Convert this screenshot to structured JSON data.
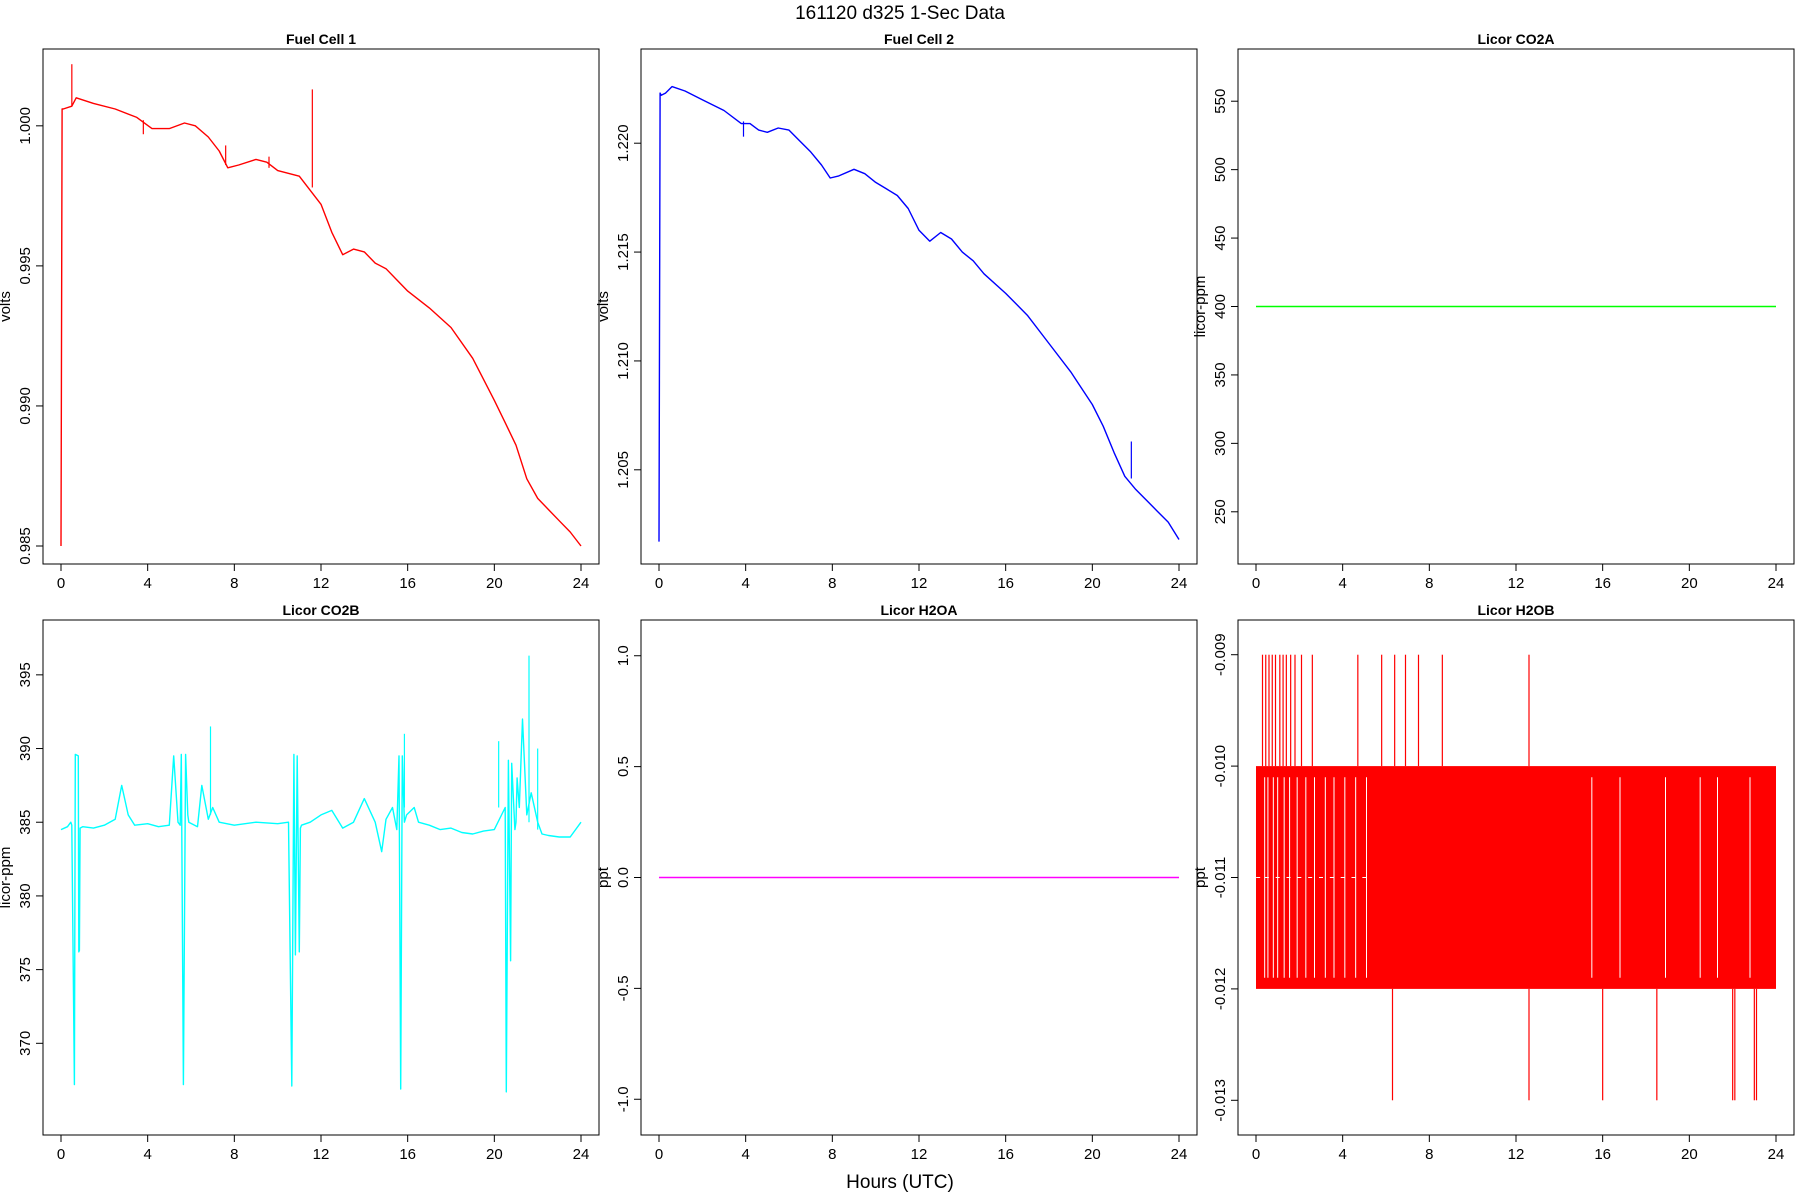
{
  "figure": {
    "title": "161120   d325   1-Sec Data",
    "xlabel": "Hours (UTC)"
  },
  "chart_data": [
    {
      "type": "line",
      "title": "Fuel Cell 1",
      "ylabel": "volts",
      "xlim": [
        0,
        24
      ],
      "ylim": [
        0.985,
        1.0021
      ],
      "x_ticks": [
        0,
        4,
        8,
        12,
        16,
        20,
        24
      ],
      "y_ticks": [
        0.985,
        0.99,
        0.995,
        1.0
      ],
      "y_tick_labels": [
        "0.985",
        "0.990",
        "0.995",
        "1.000"
      ],
      "color": "#ff0000",
      "series": [
        {
          "x": [
            0,
            0.05,
            0.1,
            0.5,
            0.7,
            1.5,
            2.5,
            3.5,
            4.2,
            5.0,
            5.7,
            6.2,
            6.8,
            7.3,
            7.7,
            8.2,
            9.0,
            9.5,
            10.0,
            11.0,
            11.5,
            12.0,
            12.5,
            13.0,
            13.5,
            14.0,
            14.5,
            15.0,
            15.5,
            16.0,
            17.0,
            18.0,
            19.0,
            20.0,
            20.5,
            21.0,
            21.5,
            22.0,
            22.5,
            23.0,
            23.5,
            24.0
          ],
          "y": [
            0.985,
            1.0006,
            1.0006,
            1.0007,
            1.001,
            1.0008,
            1.0006,
            1.0003,
            0.9999,
            0.9999,
            1.0001,
            1.0,
            0.9996,
            0.9991,
            0.9985,
            0.9986,
            0.9988,
            0.9987,
            0.9984,
            0.9982,
            0.9977,
            0.9972,
            0.9962,
            0.9954,
            0.9956,
            0.9955,
            0.9951,
            0.9949,
            0.9945,
            0.9941,
            0.9935,
            0.9928,
            0.9917,
            0.9902,
            0.9894,
            0.9886,
            0.9874,
            0.9867,
            0.9863,
            0.9859,
            0.9855,
            0.985
          ]
        }
      ],
      "spikes": [
        {
          "x": 0.5,
          "y0": 1.0007,
          "y1": 1.0022
        },
        {
          "x": 3.8,
          "y0": 0.9997,
          "y1": 1.0002
        },
        {
          "x": 7.6,
          "y0": 0.9986,
          "y1": 0.9993
        },
        {
          "x": 9.6,
          "y0": 0.9985,
          "y1": 0.9989
        },
        {
          "x": 11.6,
          "y0": 0.9978,
          "y1": 1.0013
        }
      ]
    },
    {
      "type": "line",
      "title": "Fuel Cell 2",
      "ylabel": "volts",
      "xlim": [
        0,
        24
      ],
      "ylim": [
        1.2015,
        1.2235
      ],
      "x_ticks": [
        0,
        4,
        8,
        12,
        16,
        20,
        24
      ],
      "y_ticks": [
        1.205,
        1.21,
        1.215,
        1.22
      ],
      "y_tick_labels": [
        "1.205",
        "1.210",
        "1.215",
        "1.220"
      ],
      "color": "#0000ff",
      "series": [
        {
          "x": [
            0,
            0.05,
            0.1,
            0.3,
            0.6,
            1.2,
            2.0,
            3.0,
            3.8,
            4.2,
            4.6,
            5.0,
            5.5,
            6.0,
            6.5,
            7.0,
            7.5,
            7.9,
            8.3,
            9.0,
            9.5,
            10.0,
            10.5,
            11.0,
            11.5,
            12.0,
            12.5,
            13.0,
            13.5,
            14.0,
            14.5,
            15.0,
            16.0,
            17.0,
            18.0,
            19.0,
            20.0,
            20.5,
            21.0,
            21.5,
            22.0,
            22.5,
            23.0,
            23.5,
            24.0
          ],
          "y": [
            1.2017,
            1.2223,
            1.2222,
            1.2223,
            1.2226,
            1.2224,
            1.222,
            1.2215,
            1.2209,
            1.2209,
            1.2206,
            1.2205,
            1.2207,
            1.2206,
            1.2201,
            1.2196,
            1.219,
            1.2184,
            1.2185,
            1.2188,
            1.2186,
            1.2182,
            1.2179,
            1.2176,
            1.217,
            1.216,
            1.2155,
            1.2159,
            1.2156,
            1.215,
            1.2146,
            1.214,
            1.2131,
            1.2121,
            1.2108,
            1.2095,
            1.208,
            1.207,
            1.2058,
            1.2047,
            1.2041,
            1.2036,
            1.2031,
            1.2026,
            1.2018
          ]
        }
      ],
      "spikes": [
        {
          "x": 3.9,
          "y0": 1.2203,
          "y1": 1.221
        },
        {
          "x": 21.8,
          "y0": 1.2046,
          "y1": 1.2063
        }
      ]
    },
    {
      "type": "line",
      "title": "Licor CO2A",
      "ylabel": "licor-ppm",
      "xlim": [
        0,
        24
      ],
      "ylim": [
        225,
        575
      ],
      "x_ticks": [
        0,
        4,
        8,
        12,
        16,
        20,
        24
      ],
      "y_ticks": [
        250,
        300,
        350,
        400,
        450,
        500,
        550
      ],
      "y_tick_labels": [
        "250",
        "300",
        "350",
        "400",
        "450",
        "500",
        "550"
      ],
      "color": "#00ff00",
      "series": [
        {
          "x": [
            0,
            24
          ],
          "y": [
            400,
            400
          ]
        }
      ]
    },
    {
      "type": "line",
      "title": "Licor CO2B",
      "ylabel": "licor-ppm",
      "xlim": [
        0,
        24
      ],
      "ylim": [
        365,
        397.5
      ],
      "x_ticks": [
        0,
        4,
        8,
        12,
        16,
        20,
        24
      ],
      "y_ticks": [
        370,
        375,
        380,
        385,
        390,
        395
      ],
      "y_tick_labels": [
        "370",
        "375",
        "380",
        "385",
        "390",
        "395"
      ],
      "color": "#00ffff",
      "series": [
        {
          "x": [
            0,
            0.3,
            0.45,
            0.5,
            0.62,
            0.66,
            0.8,
            0.82,
            0.85,
            0.88,
            1.0,
            1.5,
            2.0,
            2.5,
            2.8,
            3.1,
            3.4,
            4.0,
            4.5,
            5.0,
            5.2,
            5.4,
            5.5,
            5.55,
            5.65,
            5.75,
            5.85,
            5.9,
            6.3,
            6.5,
            6.8,
            7.0,
            7.3,
            8.0,
            9.0,
            10.0,
            10.5,
            10.65,
            10.75,
            10.82,
            10.9,
            11.0,
            11.05,
            11.1,
            11.5,
            12.0,
            12.5,
            13.0,
            13.5,
            14.0,
            14.5,
            14.8,
            15.0,
            15.3,
            15.5,
            15.6,
            15.68,
            15.75,
            15.85,
            15.95,
            16.3,
            16.5,
            17.0,
            17.5,
            18.0,
            18.5,
            19.0,
            19.5,
            20.0,
            20.5,
            20.55,
            20.65,
            20.75,
            20.8,
            20.95,
            21.0,
            21.05,
            21.15,
            21.3,
            21.5,
            21.7,
            22.0,
            22.2,
            22.5,
            23.0,
            23.5,
            24.0
          ],
          "y": [
            384.5,
            384.7,
            385.0,
            384.8,
            367.2,
            389.6,
            389.5,
            376.2,
            376.3,
            384.6,
            384.7,
            384.6,
            384.8,
            385.2,
            387.5,
            385.5,
            384.8,
            384.9,
            384.7,
            384.8,
            389.5,
            385.0,
            384.8,
            389.6,
            367.2,
            389.6,
            385.5,
            385.0,
            384.7,
            387.5,
            385.2,
            386.0,
            385.0,
            384.8,
            385.0,
            384.9,
            385.0,
            367.1,
            389.6,
            376.0,
            389.5,
            376.2,
            384.6,
            384.8,
            385.0,
            385.5,
            385.8,
            384.6,
            385.0,
            386.6,
            385.0,
            383.0,
            385.2,
            386.0,
            384.5,
            389.5,
            366.9,
            389.5,
            385.0,
            385.5,
            386.0,
            385.0,
            384.8,
            384.5,
            384.6,
            384.3,
            384.2,
            384.4,
            384.5,
            386.0,
            366.7,
            389.2,
            375.6,
            389.0,
            384.5,
            385.0,
            388.0,
            386.0,
            392.0,
            385.5,
            387.0,
            385.0,
            384.2,
            384.1,
            384.0,
            384.0,
            385.0
          ]
        }
      ],
      "spikes": [
        {
          "x": 6.9,
          "y0": 385.5,
          "y1": 391.5
        },
        {
          "x": 15.85,
          "y0": 386.0,
          "y1": 391.0
        },
        {
          "x": 20.2,
          "y0": 386.0,
          "y1": 390.5
        },
        {
          "x": 21.6,
          "y0": 385.0,
          "y1": 396.3
        },
        {
          "x": 22.0,
          "y0": 384.5,
          "y1": 390.0
        }
      ]
    },
    {
      "type": "line",
      "title": "Licor H2OA",
      "ylabel": "ppt",
      "xlim": [
        0,
        24
      ],
      "ylim": [
        -1.08,
        1.08
      ],
      "x_ticks": [
        0,
        4,
        8,
        12,
        16,
        20,
        24
      ],
      "y_ticks": [
        -1.0,
        -0.5,
        0.0,
        0.5,
        1.0
      ],
      "y_tick_labels": [
        "-1.0",
        "-0.5",
        "0.0",
        "0.5",
        "1.0"
      ],
      "color": "#ff00ff",
      "series": [
        {
          "x": [
            0,
            24
          ],
          "y": [
            0,
            0
          ]
        }
      ]
    },
    {
      "type": "line",
      "title": "Licor H2OB",
      "ylabel": "ppt",
      "xlim": [
        0,
        24
      ],
      "ylim": [
        -0.01315,
        -0.00885
      ],
      "x_ticks": [
        0,
        4,
        8,
        12,
        16,
        20,
        24
      ],
      "y_ticks": [
        -0.013,
        -0.012,
        -0.011,
        -0.01,
        -0.009
      ],
      "y_tick_labels": [
        "-0.013",
        "-0.012",
        "-0.011",
        "-0.010",
        "-0.009"
      ],
      "color": "#ff0000",
      "band": {
        "x0": 0,
        "x1": 24,
        "y0": -0.012,
        "y1": -0.01
      },
      "spikes_up": [
        0.3,
        0.45,
        0.6,
        0.75,
        0.9,
        1.1,
        1.25,
        1.4,
        1.6,
        1.8,
        2.1,
        2.6,
        4.7,
        5.8,
        6.4,
        6.9,
        7.5,
        8.6,
        12.6
      ],
      "spikes_down": [
        6.3,
        12.6,
        16.0,
        18.5,
        22.0,
        22.1,
        23.0,
        23.1
      ],
      "gaps": [
        0.4,
        0.55,
        0.8,
        1.0,
        1.3,
        1.55,
        1.9,
        2.3,
        2.7,
        3.2,
        3.6,
        4.1,
        4.6,
        5.1,
        15.5,
        16.8,
        18.9,
        20.5,
        21.3,
        22.8
      ],
      "low_start": [
        0,
        -0.011
      ],
      "mid_marks": [
        0.1,
        0.5,
        1.0,
        1.5,
        2.0,
        2.5,
        3.0,
        3.5,
        4.0,
        4.5,
        5.0
      ]
    }
  ]
}
